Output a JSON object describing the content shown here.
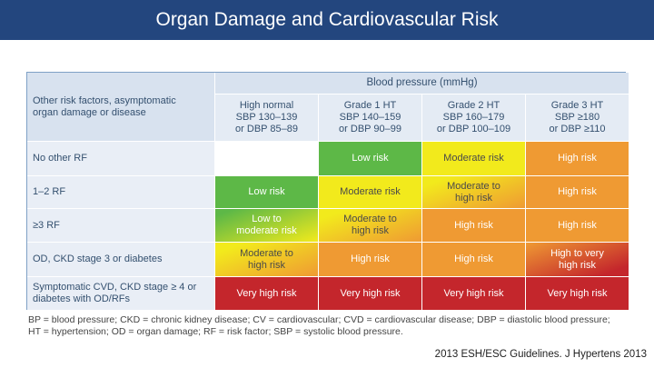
{
  "title": "Organ Damage and Cardiovascular Risk",
  "table": {
    "corner": "Other risk factors, asymptomatic organ damage or disease",
    "bp_header": "Blood pressure (mmHg)",
    "columns": [
      {
        "line1": "High normal",
        "line2": "SBP 130–139",
        "line3": "or DBP 85–89"
      },
      {
        "line1": "Grade 1 HT",
        "line2": "SBP 140–159",
        "line3": "or DBP 90–99"
      },
      {
        "line1": "Grade 2 HT",
        "line2": "SBP 160–179",
        "line3": "or DBP 100–109"
      },
      {
        "line1": "Grade 3 HT",
        "line2": "SBP ≥180",
        "line3": "or DBP ≥110"
      }
    ],
    "rows": [
      {
        "label": "No other RF",
        "cells": [
          "",
          "Low risk",
          "Moderate risk",
          "High risk"
        ]
      },
      {
        "label": "1–2 RF",
        "cells": [
          "Low risk",
          "Moderate risk",
          "Moderate to high risk",
          "High risk"
        ]
      },
      {
        "label": "≥3 RF",
        "cells": [
          "Low to moderate risk",
          "Moderate to high risk",
          "High risk",
          "High risk"
        ]
      },
      {
        "label": "OD, CKD stage 3 or diabetes",
        "cells": [
          "Moderate to high risk",
          "High risk",
          "High risk",
          "High to very high risk"
        ]
      },
      {
        "label": "Symptomatic CVD, CKD stage ≥ 4 or diabetes with OD/RFs",
        "cells": [
          "Very high risk",
          "Very high risk",
          "Very high risk",
          "Very high risk"
        ]
      }
    ]
  },
  "colors": {
    "title_bar": "#23467e",
    "low": "#5db847",
    "moderate": "#f2ea1c",
    "high": "#ef9a33",
    "very_high": "#c4262c"
  },
  "footnote": {
    "line1": "BP = blood pressure; CKD = chronic kidney disease; CV = cardiovascular; CVD = cardiovascular disease; DBP = diastolic blood pressure;",
    "line2": "HT = hypertension; OD = organ damage; RF = risk factor; SBP = systolic blood pressure."
  },
  "citation": "2013 ESH/ESC Guidelines. J Hypertens 2013"
}
